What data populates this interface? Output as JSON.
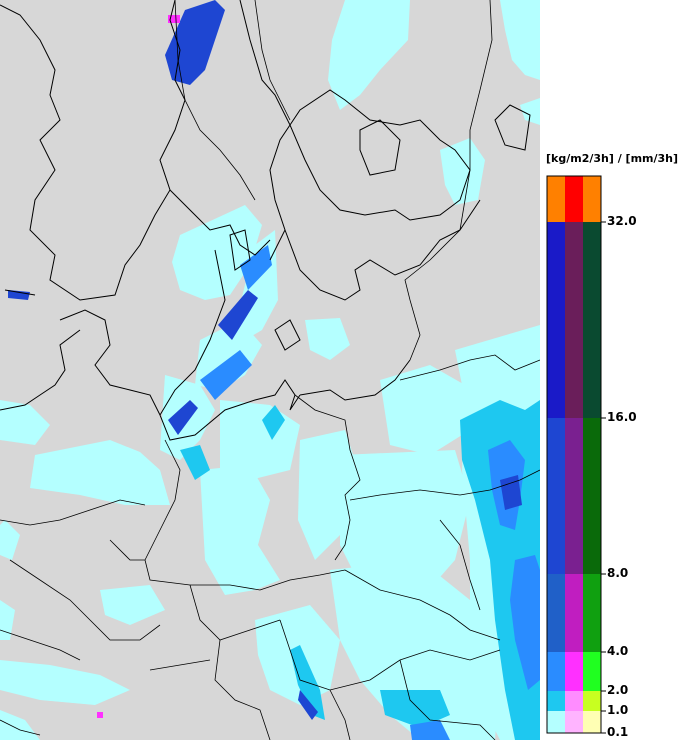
{
  "legend": {
    "unit": "[kg/m2/3h] / [mm/3h]",
    "ticks": [
      "32.0",
      "16.0",
      "8.0",
      "4.0",
      "2.0",
      "1.0",
      "0.1"
    ],
    "bands": [
      {
        "from": "32.0",
        "to": null,
        "colors": [
          "#ff8000",
          "#ff0000",
          "#ff8000"
        ]
      },
      {
        "from": "16.0",
        "to": "32.0",
        "colors": [
          "#1a1ac8",
          "#6a1e5a",
          "#0a4a30"
        ]
      },
      {
        "from": "8.0",
        "to": "16.0",
        "colors": [
          "#1e46d2",
          "#7a2090",
          "#0a6a0a"
        ]
      },
      {
        "from": "4.0",
        "to": "8.0",
        "colors": [
          "#2060c8",
          "#c01ec0",
          "#10a010"
        ]
      },
      {
        "from": "2.0",
        "to": "4.0",
        "colors": [
          "#2a8cff",
          "#ff30ff",
          "#20ff20"
        ]
      },
      {
        "from": "1.0",
        "to": "2.0",
        "colors": [
          "#1ec8f0",
          "#ff8cff",
          "#c8ff20"
        ]
      },
      {
        "from": "0.1",
        "to": "1.0",
        "colors": [
          "#b4ffff",
          "#ffb4ff",
          "#ffffb4"
        ]
      }
    ]
  },
  "colors": {
    "land": "#d7d7d7",
    "border": "#000000",
    "light_precip": "#b4ffff",
    "moderate_precip": "#1ec8f0",
    "heavy_precip": "#2a8cff",
    "very_heavy_precip": "#1e46d2"
  }
}
